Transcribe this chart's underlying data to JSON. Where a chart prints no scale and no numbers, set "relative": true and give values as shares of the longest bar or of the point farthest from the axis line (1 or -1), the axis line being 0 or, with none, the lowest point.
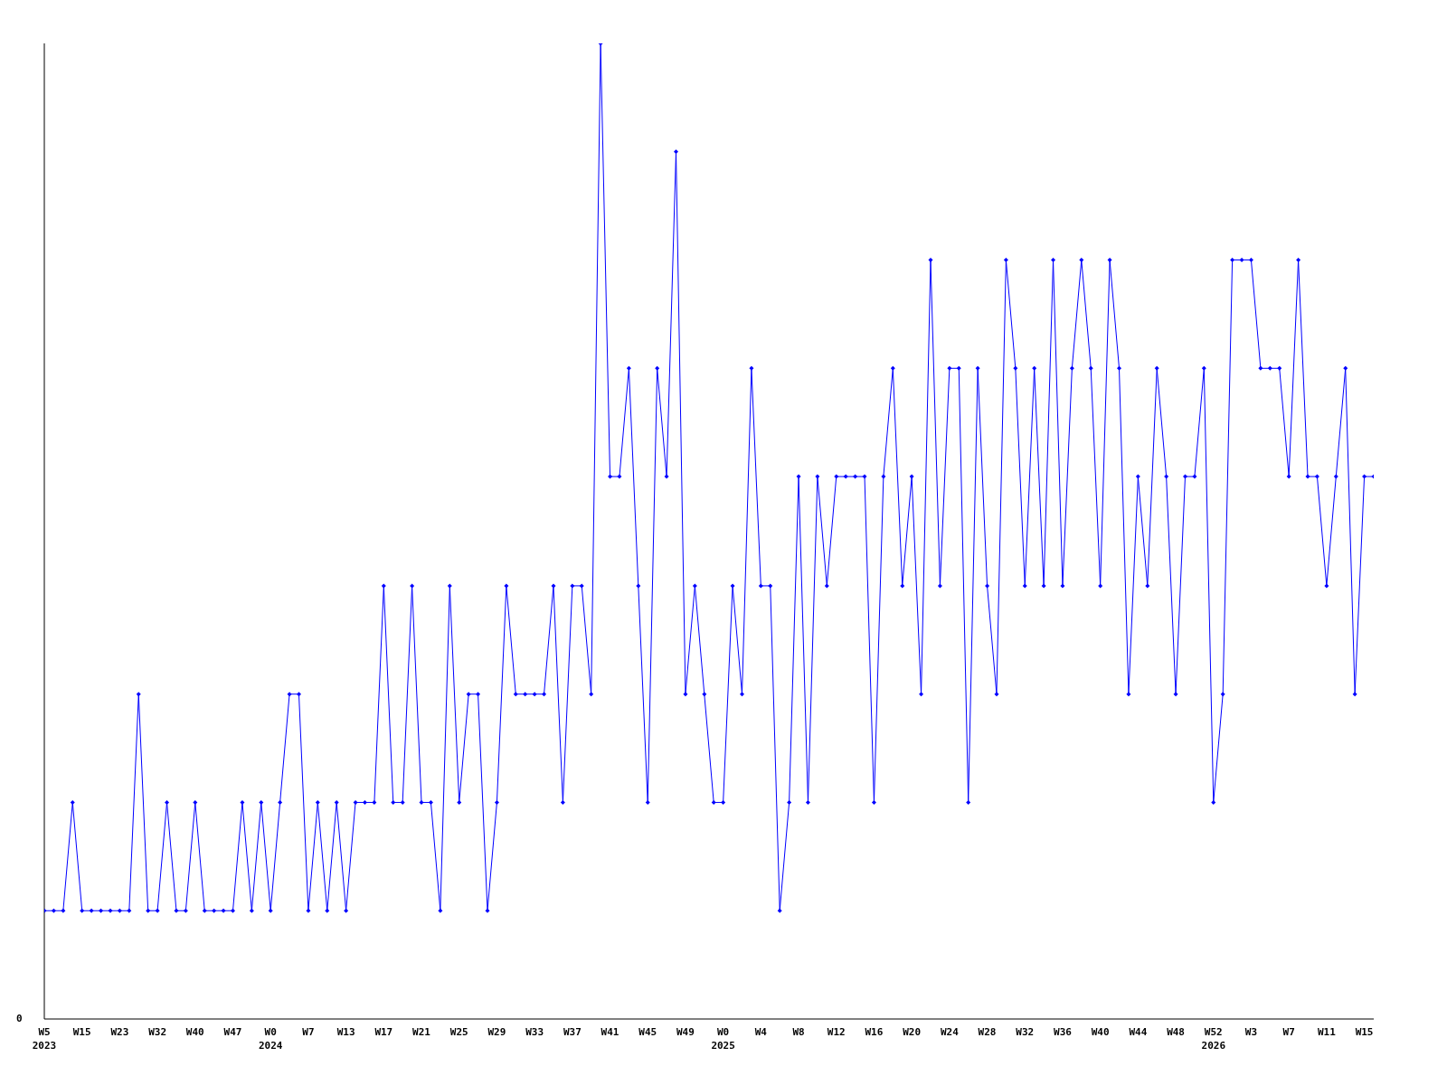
{
  "chart_data": {
    "type": "line",
    "relative": true,
    "marker": "diamond",
    "grid": false,
    "legend": false,
    "annotations": [
      "0"
    ],
    "categories": [
      "W5\n2023",
      null,
      null,
      null,
      "W15",
      null,
      null,
      null,
      "W23",
      null,
      null,
      null,
      "W32",
      null,
      null,
      null,
      "W40",
      null,
      null,
      null,
      "W47",
      null,
      null,
      null,
      "W0\n2024",
      null,
      null,
      null,
      "W7",
      null,
      null,
      null,
      "W13",
      null,
      null,
      null,
      "W17",
      null,
      null,
      null,
      "W21",
      null,
      null,
      null,
      "W25",
      null,
      null,
      null,
      "W29",
      null,
      null,
      null,
      "W33",
      null,
      null,
      null,
      "W37",
      null,
      null,
      null,
      "W41",
      null,
      null,
      null,
      "W45",
      null,
      null,
      null,
      "W49",
      null,
      null,
      null,
      "W0\n2025",
      null,
      null,
      null,
      "W4",
      null,
      null,
      null,
      "W8",
      null,
      null,
      null,
      "W12",
      null,
      null,
      null,
      "W16",
      null,
      null,
      null,
      "W20",
      null,
      null,
      null,
      "W24",
      null,
      null,
      null,
      "W28",
      null,
      null,
      null,
      "W32",
      null,
      null,
      null,
      "W36",
      null,
      null,
      null,
      "W40",
      null,
      null,
      null,
      "W44",
      null,
      null,
      null,
      "W48",
      null,
      null,
      null,
      "W52\n2026",
      null,
      null,
      null,
      "W3",
      null,
      null,
      null,
      "W7",
      null,
      null,
      null,
      "W11",
      null,
      null,
      null,
      "W15",
      null
    ],
    "series": [
      {
        "color": "#0000ff",
        "values": [
          0.111,
          0.111,
          0.111,
          0.222,
          0.111,
          0.111,
          0.111,
          0.111,
          0.111,
          0.111,
          0.333,
          0.111,
          0.111,
          0.222,
          0.111,
          0.111,
          0.222,
          0.111,
          0.111,
          0.111,
          0.111,
          0.222,
          0.111,
          0.222,
          0.111,
          0.222,
          0.333,
          0.333,
          0.111,
          0.222,
          0.111,
          0.222,
          0.111,
          0.222,
          0.222,
          0.222,
          0.444,
          0.222,
          0.222,
          0.444,
          0.222,
          0.222,
          0.111,
          0.444,
          0.222,
          0.333,
          0.333,
          0.111,
          0.222,
          0.444,
          0.333,
          0.333,
          0.333,
          0.333,
          0.444,
          0.222,
          0.444,
          0.444,
          0.333,
          1,
          0.556,
          0.556,
          0.667,
          0.444,
          0.222,
          0.667,
          0.556,
          0.889,
          0.333,
          0.444,
          0.333,
          0.222,
          0.222,
          0.444,
          0.333,
          0.667,
          0.444,
          0.444,
          0.111,
          0.222,
          0.556,
          0.222,
          0.556,
          0.444,
          0.556,
          0.556,
          0.556,
          0.556,
          0.222,
          0.556,
          0.667,
          0.444,
          0.556,
          0.333,
          0.778,
          0.444,
          0.667,
          0.667,
          0.222,
          0.667,
          0.444,
          0.333,
          0.778,
          0.667,
          0.444,
          0.667,
          0.444,
          0.778,
          0.444,
          0.667,
          0.778,
          0.667,
          0.444,
          0.778,
          0.667,
          0.333,
          0.556,
          0.444,
          0.667,
          0.556,
          0.333,
          0.556,
          0.556,
          0.667,
          0.222,
          0.333,
          0.778,
          0.778,
          0.778,
          0.667,
          0.667,
          0.667,
          0.556,
          0.778,
          0.556,
          0.556,
          0.444,
          0.556,
          0.667,
          0.333,
          0.556,
          0.556
        ]
      }
    ]
  }
}
